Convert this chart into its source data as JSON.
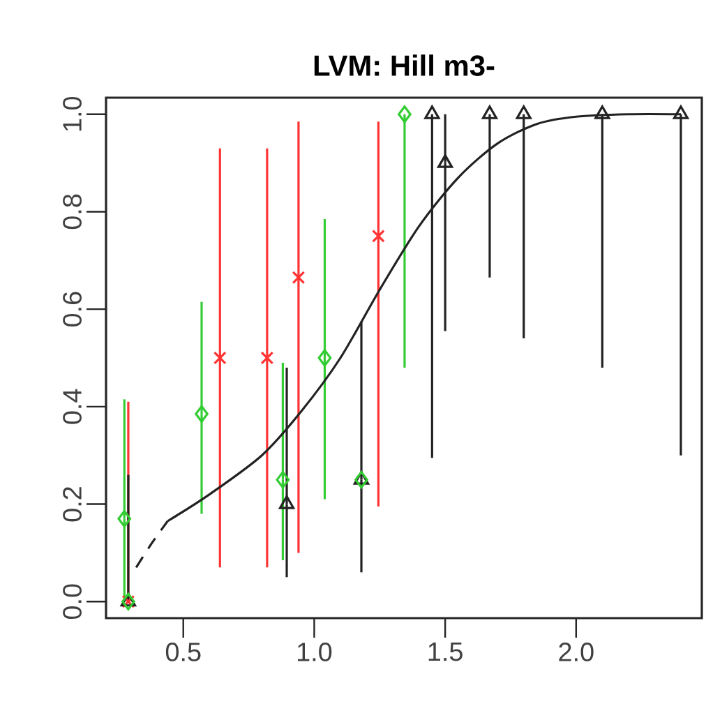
{
  "chart_data": {
    "type": "scatter",
    "title": "LVM: Hill m3-",
    "xlim": [
      0.205,
      2.48
    ],
    "ylim": [
      -0.034,
      1.034
    ],
    "xticks": [
      {
        "value": 0.5,
        "label": "0.5"
      },
      {
        "value": 1,
        "label": "1.0"
      },
      {
        "value": 1.5,
        "label": "1.5"
      },
      {
        "value": 2,
        "label": "2.0"
      }
    ],
    "yticks": [
      {
        "value": 0,
        "label": "0.0"
      },
      {
        "value": 0.2,
        "label": "0.2"
      },
      {
        "value": 0.4,
        "label": "0.4"
      },
      {
        "value": 0.6,
        "label": "0.6"
      },
      {
        "value": 0.8,
        "label": "0.8"
      },
      {
        "value": 1,
        "label": "1.0"
      }
    ],
    "series": [
      {
        "type": "scatter",
        "color": "#ff3333",
        "marker": "cross",
        "x": [
          0.29,
          0.64,
          0.82,
          0.94,
          1.245
        ],
        "values": [
          0,
          0.5,
          0.5,
          0.665,
          0.75
        ],
        "errors": [
          [
            0,
            0.41
          ],
          [
            0.07,
            0.93
          ],
          [
            0.07,
            0.93
          ],
          [
            0.1,
            0.985
          ],
          [
            0.195,
            0.985
          ]
        ]
      },
      {
        "type": "scatter",
        "color": "#222222",
        "marker": "triangle",
        "x": [
          0.29,
          0.895,
          1.18,
          1.45,
          1.5,
          1.67,
          1.8,
          2.1,
          2.4
        ],
        "values": [
          0,
          0.2,
          0.25,
          1,
          0.9,
          1,
          1,
          1,
          1
        ],
        "errors": [
          [
            0,
            0.26
          ],
          [
            0.05,
            0.48
          ],
          [
            0.06,
            0.575
          ],
          [
            0.295,
            1
          ],
          [
            0.555,
            1
          ],
          [
            0.665,
            1
          ],
          [
            0.54,
            1
          ],
          [
            0.48,
            1
          ],
          [
            0.3,
            1
          ]
        ]
      },
      {
        "type": "scatter",
        "color": "#33cc33",
        "marker": "diamond",
        "x": [
          0.275,
          0.29,
          0.57,
          0.88,
          1.04,
          1.18,
          1.345
        ],
        "values": [
          0.17,
          0,
          0.385,
          0.25,
          0.5,
          0.25,
          1.0
        ],
        "errors": [
          [
            0,
            0.415
          ],
          null,
          [
            0.18,
            0.615
          ],
          [
            0.085,
            0.49
          ],
          [
            0.21,
            0.785
          ],
          null,
          [
            0.48,
            1.0
          ]
        ]
      },
      {
        "type": "line",
        "color": "#222222",
        "line_style": "dashed",
        "x": [
          0.32,
          0.38,
          0.44
        ],
        "values": [
          0.07,
          0.12,
          0.165
        ]
      },
      {
        "type": "line",
        "color": "#222222",
        "line_style": "solid",
        "x": [
          0.44,
          0.6,
          0.8,
          0.95,
          1.1,
          1.25,
          1.4,
          1.55,
          1.7,
          1.85,
          2.0,
          2.2,
          2.4
        ],
        "values": [
          0.165,
          0.22,
          0.3,
          0.39,
          0.5,
          0.64,
          0.77,
          0.87,
          0.94,
          0.98,
          0.995,
          1.0,
          1.0
        ]
      }
    ]
  }
}
